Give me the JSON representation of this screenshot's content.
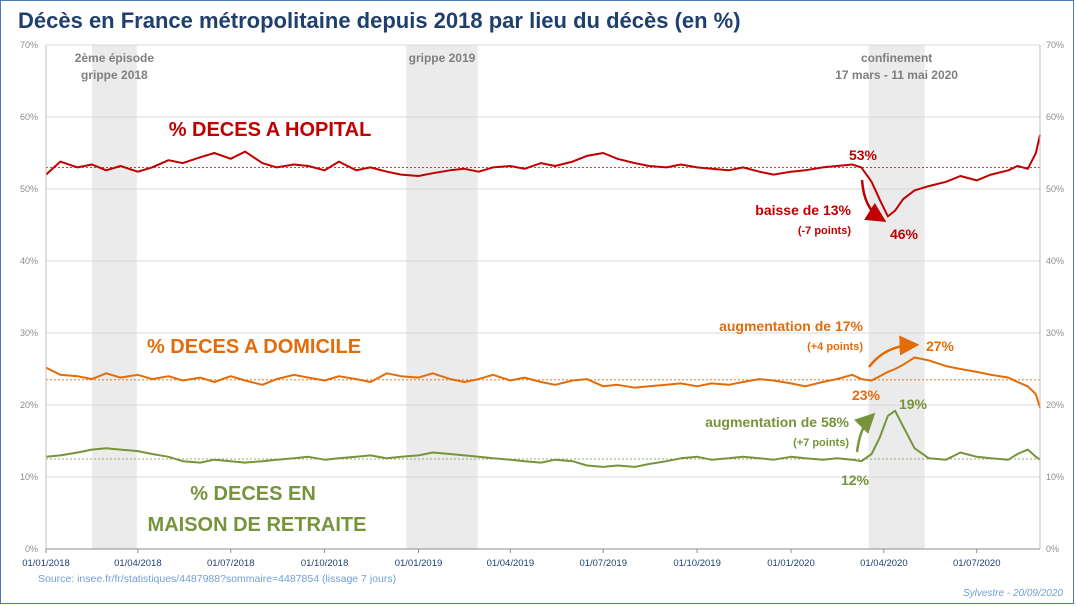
{
  "title": "Décès en France métropolitaine depuis 2018 par lieu du décès  (en %)",
  "source": "Source: insee.fr/fr/statistiques/4487988?sommaire=4487854 (lissage 7 jours)",
  "signature": "Sylvestre - 20/09/2020",
  "periods": [
    {
      "lines": [
        "2ème épisode",
        "grippe 2018"
      ],
      "start": "2018-02-15",
      "end": "2018-03-31"
    },
    {
      "lines": [
        "grippe 2019"
      ],
      "start": "2018-12-20",
      "end": "2019-02-28"
    },
    {
      "lines": [
        "confinement",
        "17 mars - 11 mai 2020"
      ],
      "start": "2020-03-17",
      "end": "2020-05-11"
    }
  ],
  "annotations": {
    "hopital": {
      "label": "% DECES A HOPITAL",
      "start_pct": "53%",
      "low_pct": "46%",
      "change": "baisse de 13%",
      "points": "(-7 points)"
    },
    "domicile": {
      "label": "% DECES A DOMICILE",
      "start_pct": "23%",
      "high_pct": "27%",
      "change": "augmentation de 17%",
      "points": "(+4 points)"
    },
    "retraite": {
      "label_line1": "% DECES EN",
      "label_line2": "MAISON DE RETRAITE",
      "start_pct": "12%",
      "high_pct": "19%",
      "change": "augmentation de 58%",
      "points": "(+7 points)"
    }
  },
  "colors": {
    "hopital": "#c00000",
    "domicile": "#e36c0a",
    "retraite": "#77933c",
    "band": "#ebebeb",
    "grid": "#d9d9d9",
    "title": "#1f3f6e"
  },
  "chart_data": {
    "type": "line",
    "title": "Décès en France métropolitaine depuis 2018 par lieu du décès  (en %)",
    "x_ticks": [
      "01/01/2018",
      "01/04/2018",
      "01/07/2018",
      "01/10/2018",
      "01/01/2019",
      "01/04/2019",
      "01/07/2019",
      "01/10/2019",
      "01/01/2020",
      "01/04/2020",
      "01/07/2020"
    ],
    "y_ticks": [
      "0%",
      "10%",
      "20%",
      "30%",
      "40%",
      "50%",
      "60%",
      "70%"
    ],
    "ylim": [
      0,
      70
    ],
    "xlim": [
      "2018-01-01",
      "2020-09-01"
    ],
    "grid": true,
    "legend": "none (labels on chart)",
    "reference_lines": [
      {
        "series": "% DECES A HOPITAL",
        "value": 53
      },
      {
        "series": "% DECES A DOMICILE",
        "value": 23.5
      },
      {
        "series": "% DECES EN MAISON DE RETRAITE",
        "value": 12.5
      }
    ],
    "series": [
      {
        "name": "% DECES A HOPITAL",
        "color": "#c00000",
        "x": [
          "2018-01-01",
          "2018-01-15",
          "2018-02-01",
          "2018-02-15",
          "2018-03-01",
          "2018-03-15",
          "2018-04-01",
          "2018-04-15",
          "2018-05-01",
          "2018-05-15",
          "2018-06-01",
          "2018-06-15",
          "2018-07-01",
          "2018-07-15",
          "2018-08-01",
          "2018-08-15",
          "2018-09-01",
          "2018-09-15",
          "2018-10-01",
          "2018-10-15",
          "2018-11-01",
          "2018-11-15",
          "2018-12-01",
          "2018-12-15",
          "2019-01-01",
          "2019-01-15",
          "2019-02-01",
          "2019-02-15",
          "2019-03-01",
          "2019-03-15",
          "2019-04-01",
          "2019-04-15",
          "2019-05-01",
          "2019-05-15",
          "2019-06-01",
          "2019-06-15",
          "2019-07-01",
          "2019-07-15",
          "2019-08-01",
          "2019-08-15",
          "2019-09-01",
          "2019-09-15",
          "2019-10-01",
          "2019-10-15",
          "2019-11-01",
          "2019-11-15",
          "2019-12-01",
          "2019-12-15",
          "2020-01-01",
          "2020-01-15",
          "2020-02-01",
          "2020-02-15",
          "2020-03-01",
          "2020-03-10",
          "2020-03-20",
          "2020-03-28",
          "2020-04-05",
          "2020-04-12",
          "2020-04-20",
          "2020-05-01",
          "2020-05-15",
          "2020-06-01",
          "2020-06-15",
          "2020-07-01",
          "2020-07-15",
          "2020-08-01",
          "2020-08-10",
          "2020-08-20",
          "2020-08-28",
          "2020-09-01"
        ],
        "y": [
          52.0,
          53.8,
          53.0,
          53.4,
          52.6,
          53.2,
          52.4,
          53.0,
          54.0,
          53.6,
          54.4,
          55.0,
          54.2,
          55.2,
          53.6,
          53.0,
          53.4,
          53.2,
          52.6,
          53.8,
          52.6,
          53.0,
          52.4,
          52.0,
          51.8,
          52.2,
          52.6,
          52.8,
          52.4,
          53.0,
          53.2,
          52.8,
          53.6,
          53.2,
          53.8,
          54.6,
          55.0,
          54.2,
          53.6,
          53.2,
          53.0,
          53.4,
          53.0,
          52.8,
          52.6,
          53.0,
          52.4,
          52.0,
          52.4,
          52.6,
          53.0,
          53.2,
          53.4,
          53.0,
          51.0,
          48.5,
          46.2,
          47.0,
          48.6,
          49.8,
          50.4,
          51.0,
          51.8,
          51.2,
          52.0,
          52.6,
          53.2,
          52.8,
          55.0,
          57.5
        ]
      },
      {
        "name": "% DECES A DOMICILE",
        "color": "#e36c0a",
        "x": [
          "2018-01-01",
          "2018-01-15",
          "2018-02-01",
          "2018-02-15",
          "2018-03-01",
          "2018-03-15",
          "2018-04-01",
          "2018-04-15",
          "2018-05-01",
          "2018-05-15",
          "2018-06-01",
          "2018-06-15",
          "2018-07-01",
          "2018-07-15",
          "2018-08-01",
          "2018-08-15",
          "2018-09-01",
          "2018-09-15",
          "2018-10-01",
          "2018-10-15",
          "2018-11-01",
          "2018-11-15",
          "2018-12-01",
          "2018-12-15",
          "2019-01-01",
          "2019-01-15",
          "2019-02-01",
          "2019-02-15",
          "2019-03-01",
          "2019-03-15",
          "2019-04-01",
          "2019-04-15",
          "2019-05-01",
          "2019-05-15",
          "2019-06-01",
          "2019-06-15",
          "2019-07-01",
          "2019-07-15",
          "2019-08-01",
          "2019-08-15",
          "2019-09-01",
          "2019-09-15",
          "2019-10-01",
          "2019-10-15",
          "2019-11-01",
          "2019-11-15",
          "2019-12-01",
          "2019-12-15",
          "2020-01-01",
          "2020-01-15",
          "2020-02-01",
          "2020-02-15",
          "2020-03-01",
          "2020-03-10",
          "2020-03-20",
          "2020-03-28",
          "2020-04-05",
          "2020-04-12",
          "2020-04-20",
          "2020-05-01",
          "2020-05-15",
          "2020-06-01",
          "2020-06-15",
          "2020-07-01",
          "2020-07-15",
          "2020-08-01",
          "2020-08-10",
          "2020-08-20",
          "2020-08-28",
          "2020-09-01"
        ],
        "y": [
          25.2,
          24.2,
          24.0,
          23.6,
          24.4,
          23.8,
          24.2,
          23.6,
          24.0,
          23.4,
          23.8,
          23.2,
          24.0,
          23.4,
          22.8,
          23.6,
          24.2,
          23.8,
          23.4,
          24.0,
          23.6,
          23.2,
          24.4,
          24.0,
          23.8,
          24.4,
          23.6,
          23.2,
          23.6,
          24.2,
          23.4,
          23.8,
          23.2,
          22.8,
          23.4,
          23.6,
          22.6,
          22.8,
          22.4,
          22.6,
          22.8,
          23.0,
          22.6,
          23.0,
          22.8,
          23.2,
          23.6,
          23.4,
          23.0,
          22.6,
          23.2,
          23.6,
          24.2,
          23.6,
          23.4,
          24.0,
          24.6,
          25.0,
          25.6,
          26.6,
          26.2,
          25.4,
          25.0,
          24.6,
          24.2,
          23.8,
          23.2,
          22.6,
          21.5,
          19.6
        ]
      },
      {
        "name": "% DECES EN MAISON DE RETRAITE",
        "color": "#77933c",
        "x": [
          "2018-01-01",
          "2018-01-15",
          "2018-02-01",
          "2018-02-15",
          "2018-03-01",
          "2018-03-15",
          "2018-04-01",
          "2018-04-15",
          "2018-05-01",
          "2018-05-15",
          "2018-06-01",
          "2018-06-15",
          "2018-07-01",
          "2018-07-15",
          "2018-08-01",
          "2018-08-15",
          "2018-09-01",
          "2018-09-15",
          "2018-10-01",
          "2018-10-15",
          "2018-11-01",
          "2018-11-15",
          "2018-12-01",
          "2018-12-15",
          "2019-01-01",
          "2019-01-15",
          "2019-02-01",
          "2019-02-15",
          "2019-03-01",
          "2019-03-15",
          "2019-04-01",
          "2019-04-15",
          "2019-05-01",
          "2019-05-15",
          "2019-06-01",
          "2019-06-15",
          "2019-07-01",
          "2019-07-15",
          "2019-08-01",
          "2019-08-15",
          "2019-09-01",
          "2019-09-15",
          "2019-10-01",
          "2019-10-15",
          "2019-11-01",
          "2019-11-15",
          "2019-12-01",
          "2019-12-15",
          "2020-01-01",
          "2020-01-15",
          "2020-02-01",
          "2020-02-15",
          "2020-03-01",
          "2020-03-10",
          "2020-03-20",
          "2020-03-28",
          "2020-04-05",
          "2020-04-12",
          "2020-04-20",
          "2020-05-01",
          "2020-05-15",
          "2020-06-01",
          "2020-06-15",
          "2020-07-01",
          "2020-07-15",
          "2020-08-01",
          "2020-08-10",
          "2020-08-20",
          "2020-08-28",
          "2020-09-01"
        ],
        "y": [
          12.8,
          13.0,
          13.4,
          13.8,
          14.0,
          13.8,
          13.6,
          13.2,
          12.8,
          12.2,
          12.0,
          12.4,
          12.2,
          12.0,
          12.2,
          12.4,
          12.6,
          12.8,
          12.4,
          12.6,
          12.8,
          13.0,
          12.6,
          12.8,
          13.0,
          13.4,
          13.2,
          13.0,
          12.8,
          12.6,
          12.4,
          12.2,
          12.0,
          12.4,
          12.2,
          11.6,
          11.4,
          11.6,
          11.4,
          11.8,
          12.2,
          12.6,
          12.8,
          12.4,
          12.6,
          12.8,
          12.6,
          12.4,
          12.8,
          12.6,
          12.4,
          12.6,
          12.4,
          12.2,
          13.2,
          15.5,
          18.5,
          19.2,
          17.0,
          14.0,
          12.6,
          12.4,
          13.4,
          12.8,
          12.6,
          12.4,
          13.2,
          13.8,
          12.8,
          12.4
        ]
      }
    ]
  }
}
